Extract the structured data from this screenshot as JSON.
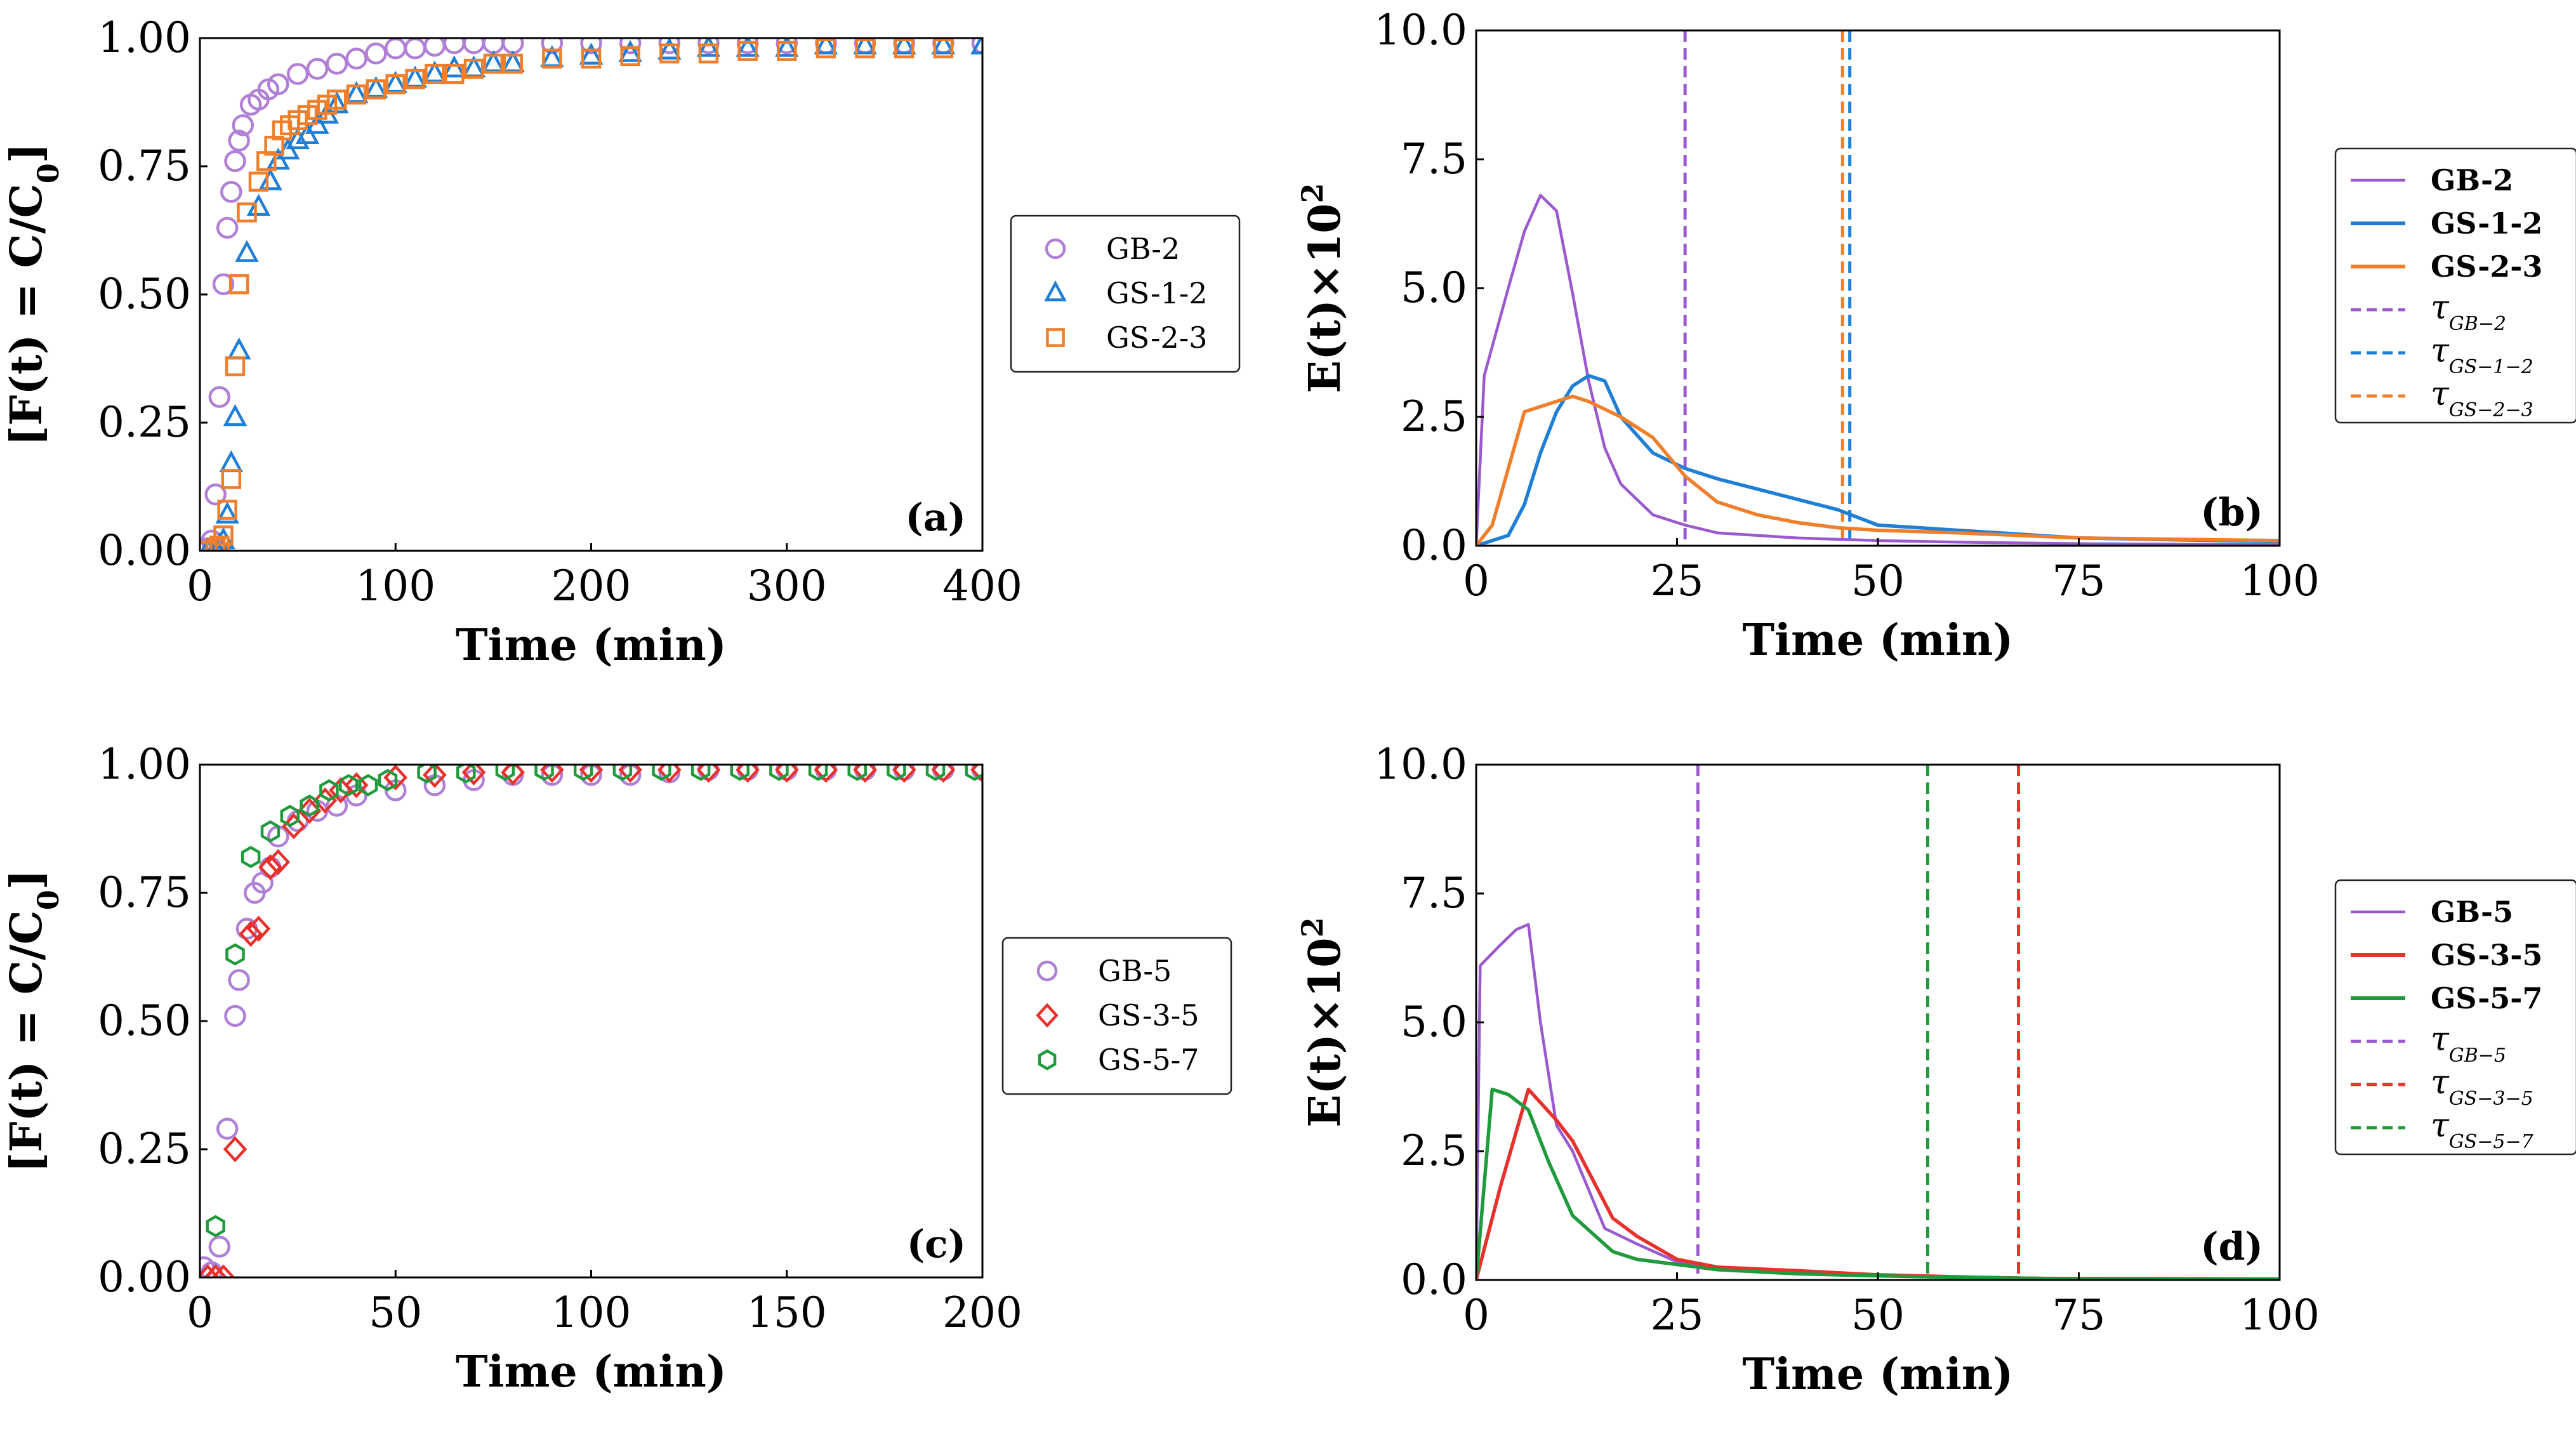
{
  "chart_data": [
    {
      "type": "scatter",
      "panel_label": "(a)",
      "xlabel": "Time (min)",
      "ylabel": "[F(t) = C/C",
      "ylabel_sub": "0",
      "ylabel_end": "]",
      "xlim": [
        0,
        400
      ],
      "ylim": [
        0,
        1
      ],
      "xticks": [
        0,
        100,
        200,
        300,
        400
      ],
      "xtick_labels": [
        "0",
        "100",
        "200",
        "300",
        "400"
      ],
      "yticks": [
        0,
        0.25,
        0.5,
        0.75,
        1.0
      ],
      "ytick_labels": [
        "0.00",
        "0.25",
        "0.50",
        "0.75",
        "1.00"
      ],
      "legend_position": "right-outside",
      "series": [
        {
          "name": "GB-2",
          "color": "#b07fd6",
          "marker": "circle",
          "x": [
            2,
            4,
            6,
            8,
            10,
            12,
            14,
            16,
            18,
            20,
            22,
            26,
            30,
            35,
            40,
            50,
            60,
            70,
            80,
            90,
            100,
            110,
            120,
            130,
            140,
            150,
            160,
            180,
            200,
            220,
            240,
            260,
            280,
            300,
            320,
            340,
            360,
            380,
            400
          ],
          "y": [
            0.0,
            0.005,
            0.02,
            0.11,
            0.3,
            0.52,
            0.63,
            0.7,
            0.76,
            0.8,
            0.83,
            0.87,
            0.88,
            0.9,
            0.91,
            0.93,
            0.94,
            0.95,
            0.96,
            0.97,
            0.98,
            0.98,
            0.985,
            0.99,
            0.99,
            0.99,
            0.99,
            0.99,
            0.99,
            0.99,
            0.99,
            0.99,
            0.99,
            0.99,
            0.99,
            0.99,
            0.99,
            0.99,
            0.99
          ]
        },
        {
          "name": "GS-1-2",
          "color": "#1f7fd6",
          "marker": "triangle",
          "x": [
            4,
            8,
            10,
            12,
            14,
            16,
            18,
            20,
            24,
            30,
            36,
            40,
            45,
            50,
            55,
            60,
            65,
            70,
            80,
            90,
            100,
            110,
            120,
            130,
            140,
            150,
            160,
            180,
            200,
            220,
            240,
            260,
            280,
            300,
            320,
            340,
            360,
            380,
            400
          ],
          "y": [
            0.0,
            0.005,
            0.01,
            0.02,
            0.07,
            0.17,
            0.26,
            0.39,
            0.58,
            0.67,
            0.72,
            0.76,
            0.78,
            0.8,
            0.81,
            0.83,
            0.85,
            0.87,
            0.89,
            0.9,
            0.91,
            0.92,
            0.93,
            0.94,
            0.94,
            0.95,
            0.95,
            0.96,
            0.965,
            0.97,
            0.975,
            0.98,
            0.98,
            0.98,
            0.985,
            0.985,
            0.985,
            0.985,
            0.985
          ]
        },
        {
          "name": "GS-2-3",
          "color": "#f07f2c",
          "marker": "square",
          "x": [
            4,
            8,
            10,
            12,
            14,
            16,
            18,
            20,
            24,
            30,
            34,
            38,
            42,
            46,
            50,
            55,
            60,
            65,
            70,
            80,
            90,
            100,
            110,
            120,
            130,
            140,
            150,
            160,
            180,
            200,
            220,
            240,
            260,
            280,
            300,
            320,
            340,
            360,
            380
          ],
          "y": [
            0.0,
            0.005,
            0.01,
            0.03,
            0.08,
            0.14,
            0.36,
            0.52,
            0.66,
            0.72,
            0.76,
            0.79,
            0.82,
            0.83,
            0.84,
            0.85,
            0.86,
            0.87,
            0.88,
            0.89,
            0.9,
            0.91,
            0.92,
            0.93,
            0.93,
            0.94,
            0.95,
            0.95,
            0.96,
            0.96,
            0.965,
            0.97,
            0.97,
            0.975,
            0.975,
            0.98,
            0.98,
            0.98,
            0.98
          ]
        }
      ]
    },
    {
      "type": "line",
      "panel_label": "(b)",
      "xlabel": "Time (min)",
      "ylabel": "E(t)×10",
      "ylabel_sup": "2",
      "xlim": [
        0,
        100
      ],
      "ylim": [
        0,
        10
      ],
      "xticks": [
        0,
        25,
        50,
        75,
        100
      ],
      "xtick_labels": [
        "0",
        "25",
        "50",
        "75",
        "100"
      ],
      "yticks": [
        0,
        2.5,
        5.0,
        7.5,
        10.0
      ],
      "ytick_labels": [
        "0.0",
        "2.5",
        "5.0",
        "7.5",
        "10.0"
      ],
      "legend_position": "right-outside",
      "series": [
        {
          "name": "GB-2",
          "color": "#9b59d0",
          "x": [
            0,
            1,
            4,
            6,
            8,
            10,
            12,
            14,
            16,
            18,
            22,
            26,
            30,
            40,
            50,
            60,
            75,
            100
          ],
          "y": [
            0,
            3.3,
            5.0,
            6.1,
            6.8,
            6.5,
            4.9,
            3.2,
            1.9,
            1.2,
            0.6,
            0.4,
            0.25,
            0.15,
            0.1,
            0.07,
            0.04,
            0.02
          ]
        },
        {
          "name": "GS-1-2",
          "color": "#1f7fd6",
          "x": [
            0,
            2,
            4,
            6,
            8,
            10,
            12,
            14,
            16,
            18,
            22,
            26,
            30,
            35,
            40,
            45,
            50,
            60,
            75,
            100
          ],
          "y": [
            0,
            0.1,
            0.2,
            0.8,
            1.8,
            2.6,
            3.1,
            3.3,
            3.2,
            2.5,
            1.8,
            1.5,
            1.3,
            1.1,
            0.9,
            0.7,
            0.4,
            0.3,
            0.15,
            0.08
          ]
        },
        {
          "name": "GS-2-3",
          "color": "#f07f2c",
          "x": [
            0,
            2,
            6,
            8,
            10,
            12,
            14,
            16,
            18,
            22,
            26,
            30,
            35,
            40,
            45,
            50,
            60,
            75,
            100
          ],
          "y": [
            0,
            0.4,
            2.6,
            2.7,
            2.8,
            2.9,
            2.8,
            2.65,
            2.5,
            2.1,
            1.35,
            0.85,
            0.6,
            0.45,
            0.35,
            0.3,
            0.25,
            0.15,
            0.1
          ]
        }
      ],
      "vlines": [
        {
          "name": "τ GB-2",
          "sub": "GB−2",
          "x": 26,
          "color": "#9b59d0"
        },
        {
          "name": "τ GS-1-2",
          "sub": "GS−1−2",
          "x": 46.5,
          "color": "#1f7fd6"
        },
        {
          "name": "τ GS-2-3",
          "sub": "GS−2−3",
          "x": 45.6,
          "color": "#f07f2c"
        }
      ]
    },
    {
      "type": "scatter",
      "panel_label": "(c)",
      "xlabel": "Time (min)",
      "ylabel": "[F(t) = C/C",
      "ylabel_sub": "0",
      "ylabel_end": "]",
      "xlim": [
        0,
        200
      ],
      "ylim": [
        0,
        1
      ],
      "xticks": [
        0,
        50,
        100,
        150,
        200
      ],
      "xtick_labels": [
        "0",
        "50",
        "100",
        "150",
        "200"
      ],
      "yticks": [
        0,
        0.25,
        0.5,
        0.75,
        1.0
      ],
      "ytick_labels": [
        "0.00",
        "0.25",
        "0.50",
        "0.75",
        "1.00"
      ],
      "legend_position": "right-outside",
      "series": [
        {
          "name": "GB-5",
          "color": "#b07fd6",
          "marker": "circle",
          "x": [
            1,
            3,
            5,
            7,
            9,
            10,
            12,
            14,
            16,
            18,
            20,
            25,
            30,
            35,
            40,
            50,
            60,
            70,
            80,
            90,
            100,
            110,
            120,
            130,
            140,
            150,
            160,
            170,
            180,
            190,
            200
          ],
          "y": [
            0.02,
            0.01,
            0.06,
            0.29,
            0.51,
            0.58,
            0.68,
            0.75,
            0.77,
            0.8,
            0.86,
            0.89,
            0.91,
            0.92,
            0.94,
            0.95,
            0.96,
            0.97,
            0.98,
            0.98,
            0.98,
            0.98,
            0.985,
            0.99,
            0.99,
            0.99,
            0.99,
            0.99,
            0.99,
            0.99,
            0.99
          ]
        },
        {
          "name": "GS-3-5",
          "color": "#e8312b",
          "marker": "diamond",
          "x": [
            2,
            4,
            6,
            9,
            13,
            15,
            18,
            20,
            24,
            28,
            32,
            36,
            40,
            50,
            60,
            70,
            80,
            90,
            100,
            110,
            120,
            130,
            140,
            150,
            160,
            170,
            180,
            190,
            200
          ],
          "y": [
            0.0,
            0.0,
            0.0,
            0.25,
            0.67,
            0.68,
            0.8,
            0.81,
            0.88,
            0.91,
            0.93,
            0.95,
            0.96,
            0.975,
            0.98,
            0.985,
            0.985,
            0.99,
            0.99,
            0.99,
            0.99,
            0.99,
            0.99,
            0.99,
            0.99,
            0.99,
            0.99,
            0.99,
            0.99
          ]
        },
        {
          "name": "GS-5-7",
          "color": "#1f9a3c",
          "marker": "hexagon",
          "x": [
            4,
            9,
            13,
            18,
            23,
            28,
            33,
            38,
            43,
            48,
            58,
            68,
            78,
            88,
            98,
            108,
            118,
            128,
            138,
            148,
            158,
            168,
            178,
            188,
            198
          ],
          "y": [
            0.1,
            0.63,
            0.82,
            0.87,
            0.9,
            0.92,
            0.95,
            0.96,
            0.96,
            0.97,
            0.985,
            0.985,
            0.99,
            0.99,
            0.99,
            0.99,
            0.99,
            0.99,
            0.99,
            0.99,
            0.99,
            0.99,
            0.99,
            0.99,
            0.99
          ]
        }
      ]
    },
    {
      "type": "line",
      "panel_label": "(d)",
      "xlabel": "Time (min)",
      "ylabel": "E(t)×10",
      "ylabel_sup": "2",
      "xlim": [
        0,
        100
      ],
      "ylim": [
        0,
        10
      ],
      "xticks": [
        0,
        25,
        50,
        75,
        100
      ],
      "xtick_labels": [
        "0",
        "25",
        "50",
        "75",
        "100"
      ],
      "yticks": [
        0,
        2.5,
        5.0,
        7.5,
        10.0
      ],
      "ytick_labels": [
        "0.0",
        "2.5",
        "5.0",
        "7.5",
        "10.0"
      ],
      "legend_position": "right-outside",
      "series": [
        {
          "name": "GB-5",
          "color": "#9b59d0",
          "x": [
            0,
            0.5,
            3,
            5,
            6.5,
            8,
            10,
            12,
            16,
            20,
            25,
            30,
            40,
            50,
            60,
            75,
            100
          ],
          "y": [
            0,
            6.1,
            6.5,
            6.8,
            6.9,
            5.0,
            3.0,
            2.5,
            1.0,
            0.7,
            0.35,
            0.2,
            0.12,
            0.08,
            0.05,
            0.03,
            0.02
          ]
        },
        {
          "name": "GS-3-5",
          "color": "#e8312b",
          "x": [
            0,
            3,
            6.5,
            10,
            12,
            17,
            20,
            25,
            30,
            40,
            50,
            60,
            70,
            100
          ],
          "y": [
            0,
            1.8,
            3.7,
            3.1,
            2.7,
            1.2,
            0.85,
            0.4,
            0.25,
            0.18,
            0.1,
            0.06,
            0.03,
            0.02
          ]
        },
        {
          "name": "GS-5-7",
          "color": "#1f9a3c",
          "x": [
            0,
            2,
            4,
            6.5,
            9,
            12,
            17,
            20,
            25,
            30,
            40,
            50,
            60,
            75,
            100
          ],
          "y": [
            0,
            3.7,
            3.6,
            3.3,
            2.3,
            1.25,
            0.55,
            0.4,
            0.3,
            0.2,
            0.12,
            0.08,
            0.05,
            0.02,
            0.01
          ]
        }
      ],
      "vlines": [
        {
          "name": "τ GB-5",
          "sub": "GB−5",
          "x": 27.6,
          "color": "#9b59d0"
        },
        {
          "name": "τ GS-3-5",
          "sub": "GS−3−5",
          "x": 67.5,
          "color": "#e8312b"
        },
        {
          "name": "τ GS-5-7",
          "sub": "GS−5−7",
          "x": 56.2,
          "color": "#1f9a3c"
        }
      ]
    }
  ]
}
